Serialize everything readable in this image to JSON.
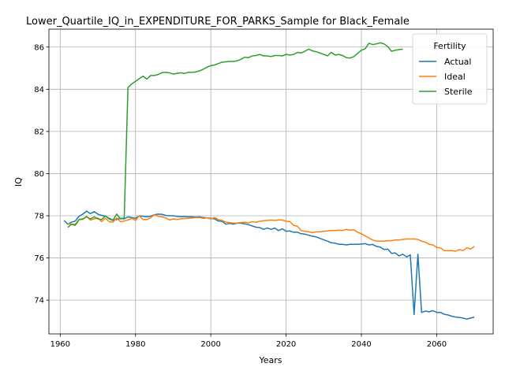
{
  "chart_data": {
    "type": "line",
    "title": "Lower_Quartile_IQ_in_EXPENDITURE_FOR_PARKS_Sample for Black_Female",
    "xlabel": "Years",
    "ylabel": "IQ",
    "xlim": [
      1957,
      2075
    ],
    "ylim": [
      72.4,
      86.85
    ],
    "xticks": [
      1960,
      1980,
      2000,
      2020,
      2040,
      2060
    ],
    "yticks": [
      74,
      76,
      78,
      80,
      82,
      84,
      86
    ],
    "grid": true,
    "legend": {
      "title": "Fertility",
      "position": "top-right"
    },
    "series": [
      {
        "name": "Actual",
        "color": "#1f77b4",
        "x": [
          1961,
          1962,
          1963,
          1964,
          1965,
          1966,
          1967,
          1968,
          1969,
          1970,
          1971,
          1972,
          1973,
          1974,
          1975,
          1976,
          1977,
          1978,
          1979,
          1980,
          1981,
          1982,
          1983,
          1984,
          1985,
          1986,
          1987,
          1988,
          1989,
          1990,
          1991,
          1992,
          1993,
          1994,
          1995,
          1996,
          1997,
          1998,
          1999,
          2000,
          2001,
          2002,
          2003,
          2004,
          2005,
          2006,
          2007,
          2008,
          2009,
          2010,
          2011,
          2012,
          2013,
          2014,
          2015,
          2016,
          2017,
          2018,
          2019,
          2020,
          2021,
          2022,
          2023,
          2024,
          2025,
          2026,
          2027,
          2028,
          2029,
          2030,
          2031,
          2032,
          2033,
          2034,
          2035,
          2036,
          2037,
          2038,
          2039,
          2040,
          2041,
          2042,
          2043,
          2044,
          2045,
          2046,
          2047,
          2048,
          2049,
          2050,
          2051,
          2052,
          2053,
          2054,
          2055,
          2056,
          2057,
          2058,
          2059,
          2060,
          2061,
          2062,
          2063,
          2064,
          2065,
          2066,
          2067,
          2068,
          2069,
          2070
        ],
        "y": [
          77.78,
          77.6,
          77.7,
          77.75,
          77.98,
          78.08,
          78.22,
          78.1,
          78.2,
          78.08,
          78.02,
          77.98,
          77.88,
          77.8,
          77.82,
          77.88,
          77.85,
          77.95,
          77.92,
          77.88,
          78.0,
          77.98,
          77.95,
          77.98,
          78.05,
          78.08,
          78.07,
          78.02,
          78.0,
          78.0,
          77.97,
          77.96,
          77.96,
          77.95,
          77.95,
          77.94,
          77.95,
          77.92,
          77.9,
          77.88,
          77.85,
          77.75,
          77.74,
          77.6,
          77.64,
          77.6,
          77.65,
          77.65,
          77.62,
          77.58,
          77.52,
          77.46,
          77.44,
          77.36,
          77.42,
          77.36,
          77.42,
          77.3,
          77.38,
          77.27,
          77.28,
          77.22,
          77.22,
          77.15,
          77.13,
          77.08,
          77.03,
          77.0,
          76.93,
          76.86,
          76.8,
          76.72,
          76.7,
          76.65,
          76.65,
          76.62,
          76.65,
          76.65,
          76.65,
          76.66,
          76.68,
          76.62,
          76.64,
          76.55,
          76.52,
          76.4,
          76.42,
          76.22,
          76.24,
          76.1,
          76.18,
          76.05,
          76.15,
          73.32,
          76.18,
          73.42,
          73.48,
          73.45,
          73.5,
          73.42,
          73.42,
          73.33,
          73.3,
          73.24,
          73.2,
          73.18,
          73.15,
          73.1,
          73.15,
          73.2
        ]
      },
      {
        "name": "Ideal",
        "color": "#ff7f0e",
        "x": [
          1962,
          1963,
          1964,
          1965,
          1966,
          1967,
          1968,
          1969,
          1970,
          1971,
          1972,
          1973,
          1974,
          1975,
          1976,
          1977,
          1978,
          1979,
          1980,
          1981,
          1982,
          1983,
          1984,
          1985,
          1986,
          1987,
          1988,
          1989,
          1990,
          1991,
          1992,
          1993,
          1994,
          1995,
          1996,
          1997,
          1998,
          1999,
          2000,
          2001,
          2002,
          2003,
          2004,
          2005,
          2006,
          2007,
          2008,
          2009,
          2010,
          2011,
          2012,
          2013,
          2014,
          2015,
          2016,
          2017,
          2018,
          2019,
          2020,
          2021,
          2022,
          2023,
          2024,
          2025,
          2026,
          2027,
          2028,
          2029,
          2030,
          2031,
          2032,
          2033,
          2034,
          2035,
          2036,
          2037,
          2038,
          2039,
          2040,
          2041,
          2042,
          2043,
          2044,
          2045,
          2046,
          2047,
          2048,
          2049,
          2050,
          2051,
          2052,
          2053,
          2054,
          2055,
          2056,
          2057,
          2058,
          2059,
          2060,
          2061,
          2062,
          2063,
          2064,
          2065,
          2066,
          2067,
          2068,
          2069,
          2070
        ],
        "y": [
          77.62,
          77.6,
          77.6,
          77.82,
          77.82,
          77.98,
          77.8,
          77.85,
          77.9,
          77.72,
          77.88,
          77.72,
          77.7,
          77.9,
          77.72,
          77.75,
          77.8,
          77.88,
          77.78,
          78.0,
          77.82,
          77.82,
          77.9,
          78.05,
          77.98,
          77.95,
          77.9,
          77.8,
          77.85,
          77.82,
          77.85,
          77.87,
          77.88,
          77.9,
          77.92,
          77.92,
          77.88,
          77.9,
          77.85,
          77.92,
          77.82,
          77.78,
          77.7,
          77.68,
          77.65,
          77.66,
          77.68,
          77.7,
          77.66,
          77.72,
          77.7,
          77.74,
          77.76,
          77.78,
          77.8,
          77.78,
          77.8,
          77.8,
          77.74,
          77.72,
          77.55,
          77.5,
          77.3,
          77.26,
          77.24,
          77.2,
          77.24,
          77.24,
          77.26,
          77.28,
          77.3,
          77.3,
          77.32,
          77.3,
          77.35,
          77.32,
          77.34,
          77.22,
          77.15,
          77.05,
          76.95,
          76.85,
          76.8,
          76.8,
          76.8,
          76.82,
          76.82,
          76.85,
          76.85,
          76.88,
          76.9,
          76.9,
          76.9,
          76.88,
          76.8,
          76.75,
          76.65,
          76.62,
          76.5,
          76.48,
          76.35,
          76.35,
          76.35,
          76.32,
          76.4,
          76.35,
          76.48,
          76.42,
          76.55
        ]
      },
      {
        "name": "Sterile",
        "color": "#2ca02c",
        "x": [
          1962,
          1963,
          1964,
          1965,
          1966,
          1967,
          1968,
          1969,
          1970,
          1971,
          1972,
          1973,
          1974,
          1975,
          1976,
          1977,
          1978,
          1979,
          1980,
          1981,
          1982,
          1983,
          1984,
          1985,
          1986,
          1987,
          1988,
          1989,
          1990,
          1991,
          1992,
          1993,
          1994,
          1995,
          1996,
          1997,
          1998,
          1999,
          2000,
          2001,
          2002,
          2003,
          2004,
          2005,
          2006,
          2007,
          2008,
          2009,
          2010,
          2011,
          2012,
          2013,
          2014,
          2015,
          2016,
          2017,
          2018,
          2019,
          2020,
          2021,
          2022,
          2023,
          2024,
          2025,
          2026,
          2027,
          2028,
          2029,
          2030,
          2031,
          2032,
          2033,
          2034,
          2035,
          2036,
          2037,
          2038,
          2039,
          2040,
          2041,
          2042,
          2043,
          2044,
          2045,
          2046,
          2047,
          2048,
          2049,
          2050,
          2051
        ],
        "y": [
          77.45,
          77.6,
          77.55,
          77.82,
          77.85,
          77.95,
          77.85,
          77.95,
          77.85,
          77.82,
          78.0,
          77.85,
          77.78,
          78.08,
          77.85,
          77.9,
          84.08,
          84.25,
          84.38,
          84.5,
          84.62,
          84.48,
          84.65,
          84.65,
          84.7,
          84.78,
          84.8,
          84.78,
          84.72,
          84.75,
          84.78,
          84.75,
          84.8,
          84.8,
          84.82,
          84.87,
          84.95,
          85.05,
          85.12,
          85.15,
          85.22,
          85.28,
          85.3,
          85.32,
          85.32,
          85.35,
          85.42,
          85.52,
          85.5,
          85.58,
          85.6,
          85.65,
          85.58,
          85.58,
          85.55,
          85.6,
          85.6,
          85.58,
          85.65,
          85.62,
          85.65,
          85.75,
          85.72,
          85.8,
          85.9,
          85.82,
          85.78,
          85.72,
          85.65,
          85.58,
          85.75,
          85.62,
          85.65,
          85.6,
          85.5,
          85.48,
          85.55,
          85.7,
          85.85,
          85.92,
          86.18,
          86.12,
          86.15,
          86.2,
          86.15,
          86.02,
          85.8,
          85.85,
          85.88,
          85.9
        ]
      }
    ]
  }
}
